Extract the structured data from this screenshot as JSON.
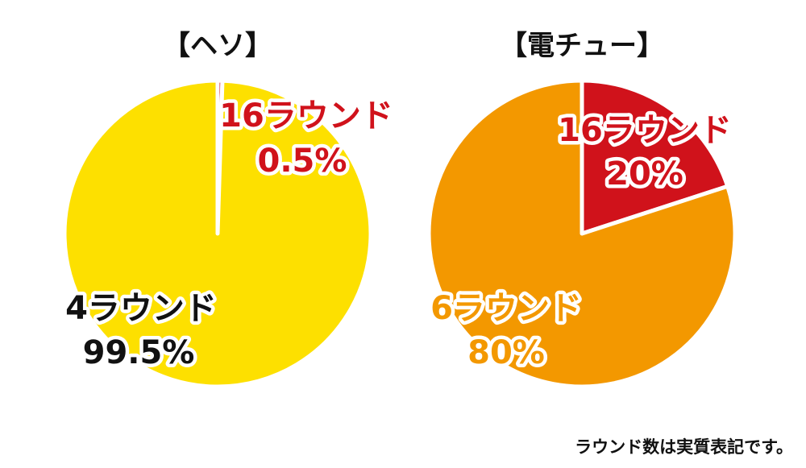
{
  "chart_data": [
    {
      "type": "pie",
      "title": "【ヘソ】",
      "slices": [
        {
          "label": "16ラウンド",
          "percent_label": "0.5%",
          "value": 0.5,
          "color": "#d0121b"
        },
        {
          "label": "4ラウンド",
          "percent_label": "99.5%",
          "value": 99.5,
          "color": "#fde000"
        }
      ]
    },
    {
      "type": "pie",
      "title": "【電チュー】",
      "slices": [
        {
          "label": "16ラウンド",
          "percent_label": "20%",
          "value": 20,
          "color": "#d0121b"
        },
        {
          "label": "6ラウンド",
          "percent_label": "80%",
          "value": 80,
          "color": "#f39800"
        }
      ]
    }
  ],
  "footnote": "ラウンド数は実質表記です。"
}
